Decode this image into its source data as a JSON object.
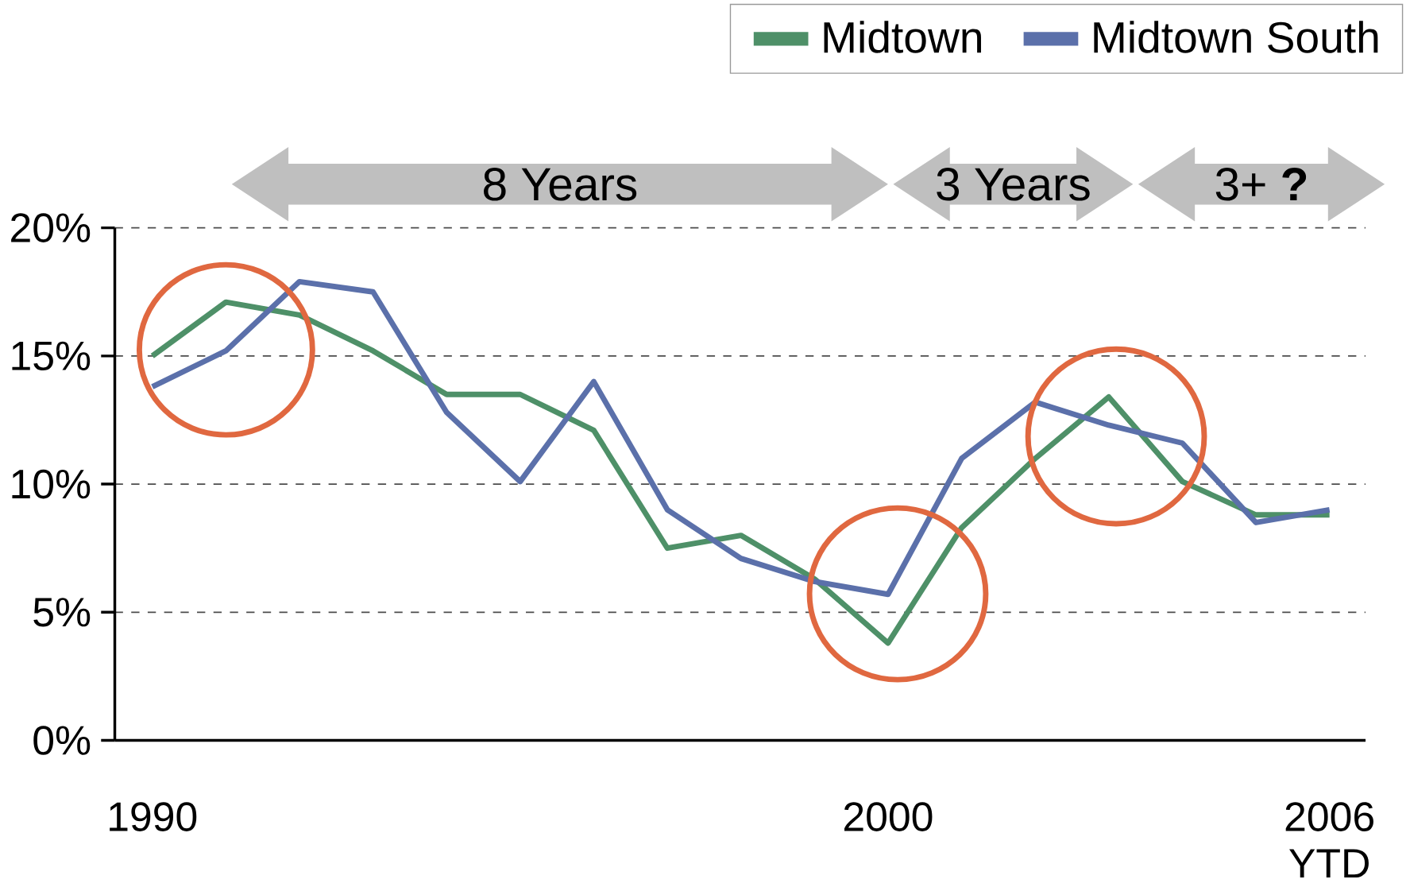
{
  "chart_data": {
    "type": "line",
    "categories": [
      "1990",
      null,
      null,
      null,
      null,
      null,
      null,
      null,
      null,
      null,
      "2000",
      null,
      null,
      null,
      null,
      null,
      "2006 YTD"
    ],
    "series": [
      {
        "name": "Midtown",
        "color": "#4e9068",
        "values": [
          15.0,
          17.1,
          16.6,
          15.2,
          13.5,
          13.5,
          12.1,
          7.5,
          8.0,
          6.3,
          3.8,
          8.3,
          11.0,
          13.4,
          10.1,
          8.8,
          8.8
        ]
      },
      {
        "name": "Midtown South",
        "color": "#5b70aa",
        "values": [
          13.8,
          15.2,
          17.9,
          17.5,
          12.8,
          10.1,
          14.0,
          9.0,
          7.1,
          6.2,
          5.7,
          11.0,
          13.2,
          12.3,
          11.6,
          8.5,
          9.0
        ]
      }
    ],
    "ylim": [
      0,
      20
    ],
    "yticks": [
      {
        "value": 0,
        "label": "0%"
      },
      {
        "value": 5,
        "label": "5%"
      },
      {
        "value": 10,
        "label": "10%"
      },
      {
        "value": 15,
        "label": "15%"
      },
      {
        "value": 20,
        "label": "20%"
      }
    ],
    "grid": "y",
    "legend": "top right",
    "marker": "none",
    "line_style": "solid",
    "annotations": [
      "8 Years",
      "3 Years",
      "3+ **?**"
    ]
  }
}
